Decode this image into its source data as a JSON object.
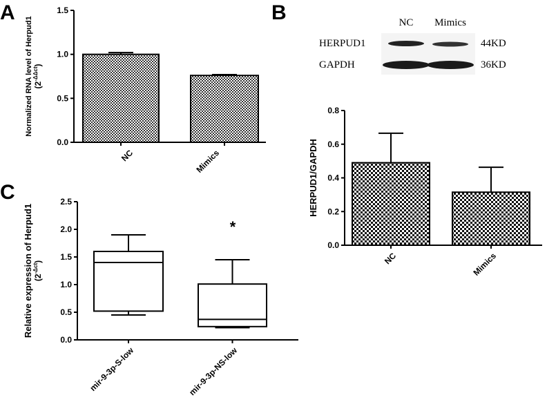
{
  "panels": [
    "A",
    "B",
    "C"
  ],
  "blot": {
    "lanes": [
      "NC",
      "Mimics"
    ],
    "rows": [
      {
        "label": "HERPUD1",
        "size": "44KD"
      },
      {
        "label": "GAPDH",
        "size": "36KD"
      }
    ]
  },
  "chart_data": [
    {
      "type": "bar",
      "ylabel": "Normalized RNA level of Herpud1",
      "ylabel_sub": [
        "(2",
        "-ΔΔct",
        ")"
      ],
      "categories": [
        "NC",
        "Mimics"
      ],
      "values": [
        1.0,
        0.76
      ],
      "errors": [
        0.02,
        0.01
      ],
      "ylim": [
        0,
        1.5
      ],
      "yticks": [
        {
          "value": 0,
          "label": "0.0"
        },
        0.5,
        {
          "value": 1,
          "label": "1.0"
        },
        1.5
      ]
    },
    {
      "type": "bar",
      "ylabel": "HERPUD1/GAPDH",
      "categories": [
        "NC",
        "Mimics"
      ],
      "values": [
        0.49,
        0.315
      ],
      "errors": [
        0.175,
        0.148
      ],
      "ylim": [
        0,
        0.8
      ],
      "yticks": [
        {
          "value": 0,
          "label": "0.0"
        },
        0.2,
        0.4,
        0.6,
        0.8
      ]
    },
    {
      "type": "box",
      "ylabel": "Relative expression of Herpud1",
      "ylabel_sub": [
        "(2",
        "-Δct",
        ")"
      ],
      "categories": [
        "mir-9-3p-S-low",
        "mir-9-3p-NS-low"
      ],
      "boxes": [
        {
          "min": 0.45,
          "q1": 0.52,
          "median": 1.4,
          "q3": 1.6,
          "max": 1.9
        },
        {
          "min": 0.22,
          "q1": 0.24,
          "median": 0.37,
          "q3": 1.01,
          "max": 1.45
        }
      ],
      "annotation": "*",
      "ylim": [
        0,
        2.5
      ],
      "yticks": [
        {
          "value": 0,
          "label": "0.0"
        },
        0.5,
        {
          "value": 1,
          "label": "1.0"
        },
        1.5,
        {
          "value": 2,
          "label": "2.0"
        },
        2.5
      ]
    }
  ]
}
